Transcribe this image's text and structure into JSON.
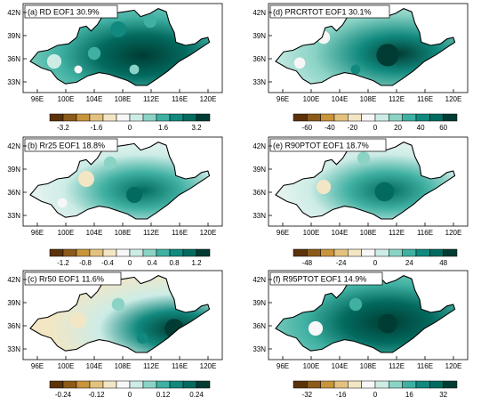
{
  "longitude_ticks": [
    "96E",
    "100E",
    "104E",
    "108E",
    "112E",
    "116E",
    "120E"
  ],
  "latitude_ticks": [
    "42N",
    "39N",
    "36N",
    "33N"
  ],
  "colors": {
    "brown_dark": "#5c3209",
    "brown": "#8c5a1a",
    "tan": "#c8943c",
    "light_tan": "#e3c27f",
    "cream": "#f3e6c4",
    "white": "#f7f7f7",
    "light_teal": "#cdece6",
    "teal1": "#8ad3c5",
    "teal2": "#3fb0a2",
    "teal3": "#11897e",
    "teal4": "#036a5f",
    "teal5": "#003c33"
  },
  "panels": [
    {
      "title": "(a) RD EOF1 30.9%",
      "colorbar_labels": [
        "-3.2",
        "-1.6",
        "0",
        "1.6",
        "3.2"
      ]
    },
    {
      "title": "(d) PRCRTOT EOF1 30.1%",
      "colorbar_labels": [
        "-60",
        "-40",
        "-20",
        "0",
        "20",
        "40",
        "60"
      ]
    },
    {
      "title": "(b) Rr25 EOF1 18.8%",
      "colorbar_labels": [
        "-1.2",
        "-0.8",
        "-0.4",
        "0",
        "0.4",
        "0.8",
        "1.2"
      ]
    },
    {
      "title": "(e) R90PTOT EOF1 18.7%",
      "colorbar_labels": [
        "-48",
        "-24",
        "0",
        "24",
        "48"
      ]
    },
    {
      "title": "(c) Rr50 EOF1 11.6%",
      "colorbar_labels": [
        "-0.24",
        "-0.12",
        "0",
        "0.12",
        "0.24"
      ]
    },
    {
      "title": "(f) R95PTOT EOF1 14.9%",
      "colorbar_labels": [
        "-32",
        "-16",
        "0",
        "16",
        "32"
      ]
    }
  ]
}
